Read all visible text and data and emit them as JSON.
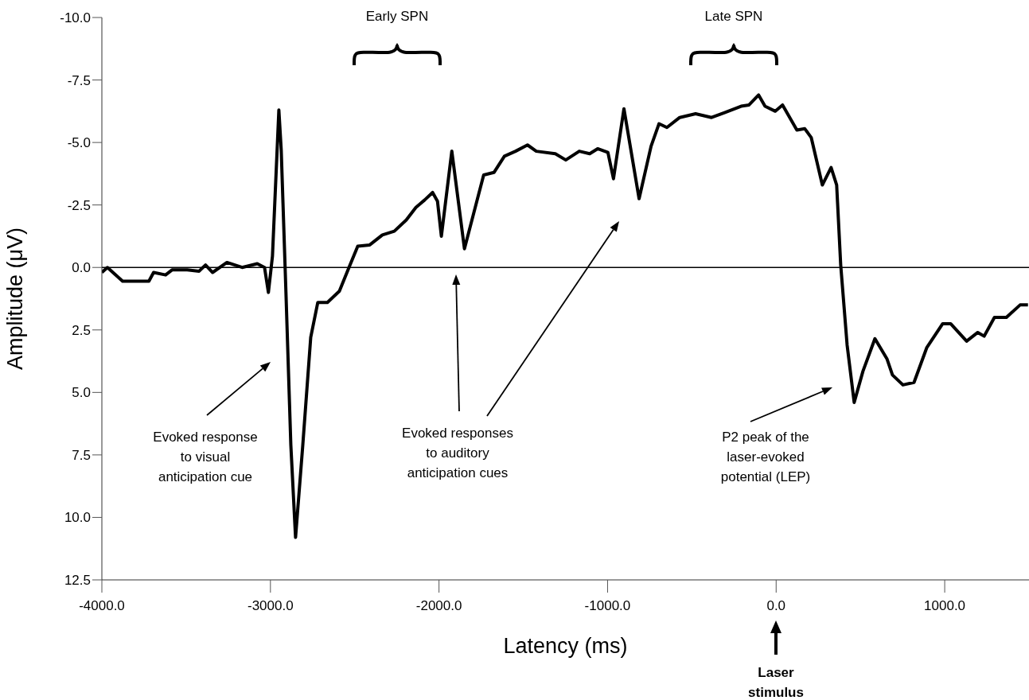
{
  "chart_data": {
    "type": "line",
    "xlabel": "Latency (ms)",
    "ylabel": "Amplitude (μV)",
    "x": [
      -4000,
      -3967,
      -3877,
      -3801,
      -3721,
      -3693,
      -3622,
      -3584,
      -3494,
      -3423,
      -3385,
      -3343,
      -3258,
      -3168,
      -3078,
      -3035,
      -3012,
      -2988,
      -2950,
      -2936,
      -2908,
      -2879,
      -2851,
      -2808,
      -2761,
      -2719,
      -2662,
      -2591,
      -2534,
      -2482,
      -2411,
      -2336,
      -2265,
      -2194,
      -2137,
      -2085,
      -2038,
      -2009,
      -1986,
      -1924,
      -1849,
      -1735,
      -1674,
      -1612,
      -1546,
      -1475,
      -1423,
      -1310,
      -1248,
      -1168,
      -1106,
      -1059,
      -998,
      -965,
      -903,
      -813,
      -742,
      -695,
      -648,
      -572,
      -478,
      -383,
      -303,
      -208,
      -161,
      -104,
      -66,
      -5,
      38,
      123,
      170,
      208,
      274,
      326,
      359,
      383,
      421,
      463,
      515,
      586,
      657,
      690,
      752,
      818,
      894,
      988,
      1035,
      1130,
      1196,
      1234,
      1295,
      1366,
      1447,
      1494
    ],
    "series": [
      {
        "color": "#000000",
        "values": [
          0.2,
          0,
          0.55,
          0.55,
          0.55,
          0.2,
          0.3,
          0.1,
          0.1,
          0.15,
          -0.1,
          0.2,
          -0.2,
          0,
          -0.15,
          0,
          1.0,
          -0.45,
          -6.3,
          -4.7,
          1.0,
          7.1,
          10.8,
          7.1,
          2.8,
          1.4,
          1.4,
          0.95,
          0,
          -0.85,
          -0.9,
          -1.3,
          -1.45,
          -1.9,
          -2.4,
          -2.7,
          -3.0,
          -2.65,
          -1.25,
          -4.65,
          -0.75,
          -3.7,
          -3.8,
          -4.45,
          -4.65,
          -4.9,
          -4.65,
          -4.55,
          -4.3,
          -4.65,
          -4.55,
          -4.75,
          -4.6,
          -3.55,
          -6.35,
          -2.75,
          -4.85,
          -5.75,
          -5.6,
          -6.0,
          -6.15,
          -6.0,
          -6.2,
          -6.45,
          -6.5,
          -6.9,
          -6.45,
          -6.25,
          -6.5,
          -5.5,
          -5.55,
          -5.2,
          -3.3,
          -4.0,
          -3.3,
          -0.1,
          3.1,
          5.4,
          4.15,
          2.85,
          3.65,
          4.3,
          4.7,
          4.6,
          3.2,
          2.25,
          2.25,
          2.95,
          2.6,
          2.75,
          2.0,
          2.0,
          1.5,
          1.5
        ]
      }
    ],
    "xlim": [
      -4000,
      1500
    ],
    "xticks": [
      {
        "value": -4000,
        "label": "-4000.0"
      },
      {
        "value": -3000,
        "label": "-3000.0"
      },
      {
        "value": -2000,
        "label": "-2000.0"
      },
      {
        "value": -1000,
        "label": "-1000.0"
      },
      {
        "value": 0,
        "label": "0.0"
      },
      {
        "value": 1000,
        "label": "1000.0"
      }
    ],
    "ylim": [
      12.5,
      -10
    ],
    "yticks": [
      {
        "value": -10,
        "label": "-10.0"
      },
      {
        "value": -7.5,
        "label": "-7.5"
      },
      {
        "value": -5,
        "label": "-5.0"
      },
      {
        "value": -2.5,
        "label": "-2.5"
      },
      {
        "value": 0,
        "label": "0.0"
      },
      {
        "value": 2.5,
        "label": "2.5"
      },
      {
        "value": 5,
        "label": "5.0"
      },
      {
        "value": 7.5,
        "label": "7.5"
      },
      {
        "value": 10,
        "label": "10.0"
      },
      {
        "value": 12.5,
        "label": "12.5"
      }
    ],
    "ref_lines": [
      {
        "axis": "y",
        "value": 0,
        "color": "#000000"
      }
    ],
    "annotations": [
      "Early SPN",
      "Late SPN",
      "Evoked response to visual anticipation cue",
      "Evoked responses to auditory anticipation cues",
      "P2 peak of the laser-evoked potential (LEP)",
      "Laser stimulus"
    ]
  }
}
